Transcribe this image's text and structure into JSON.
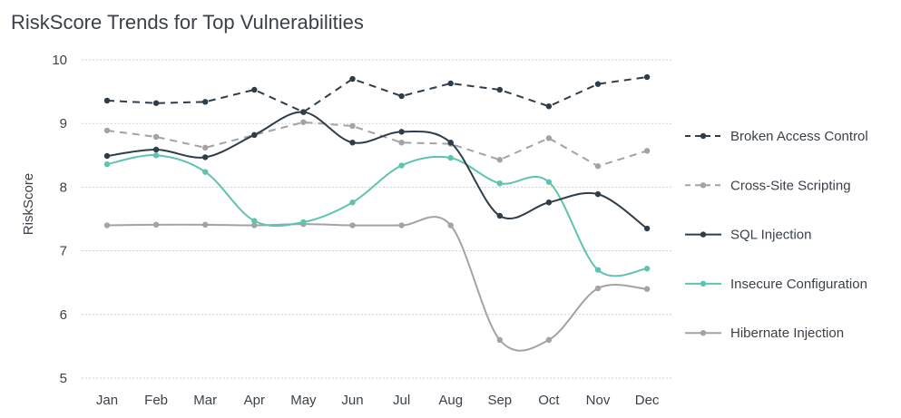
{
  "chart_data": {
    "type": "line",
    "title": "RiskScore Trends for Top Vulnerabilities",
    "xlabel": "",
    "ylabel": "RiskScore",
    "ylim": [
      5,
      10
    ],
    "yticks": [
      "5",
      "6",
      "7",
      "8",
      "9",
      "10"
    ],
    "categories": [
      "Jan",
      "Feb",
      "Mar",
      "Apr",
      "May",
      "Jun",
      "Jul",
      "Aug",
      "Sep",
      "Oct",
      "Nov",
      "Dec"
    ],
    "grid": true,
    "legend_position": "right",
    "series": [
      {
        "name": "Broken Access Control",
        "color": "#2e3d4a",
        "dashed": true,
        "smooth": false,
        "values": [
          9.36,
          9.32,
          9.34,
          9.53,
          9.18,
          9.7,
          9.43,
          9.63,
          9.53,
          9.27,
          9.62,
          9.73
        ]
      },
      {
        "name": "Cross-Site Scripting",
        "color": "#a3a3a5",
        "dashed": true,
        "smooth": false,
        "values": [
          8.89,
          8.79,
          8.62,
          8.82,
          9.02,
          8.96,
          8.7,
          8.68,
          8.43,
          8.77,
          8.33,
          8.57
        ]
      },
      {
        "name": "SQL Injection",
        "color": "#2e3d4a",
        "dashed": false,
        "smooth": true,
        "values": [
          8.49,
          8.59,
          8.47,
          8.82,
          9.18,
          8.7,
          8.87,
          8.7,
          7.55,
          7.76,
          7.89,
          7.35
        ]
      },
      {
        "name": "Insecure Configuration",
        "color": "#5ec4b0",
        "dashed": false,
        "smooth": true,
        "values": [
          8.36,
          8.5,
          8.24,
          7.47,
          7.45,
          7.76,
          8.34,
          8.46,
          8.06,
          8.08,
          6.7,
          6.72
        ]
      },
      {
        "name": "Hibernate Injection",
        "color": "#a3a3a5",
        "dashed": false,
        "smooth": true,
        "values": [
          7.4,
          7.41,
          7.41,
          7.4,
          7.42,
          7.4,
          7.4,
          7.4,
          5.6,
          5.6,
          6.41,
          6.4
        ]
      }
    ]
  }
}
